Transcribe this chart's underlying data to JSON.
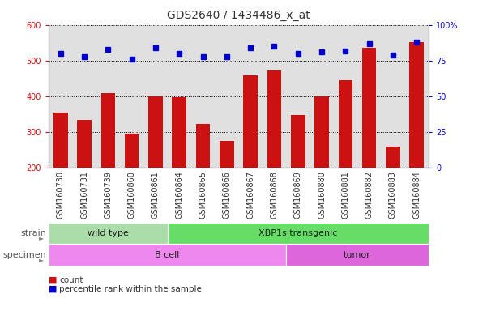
{
  "title": "GDS2640 / 1434486_x_at",
  "samples": [
    "GSM160730",
    "GSM160731",
    "GSM160739",
    "GSM160860",
    "GSM160861",
    "GSM160864",
    "GSM160865",
    "GSM160866",
    "GSM160867",
    "GSM160868",
    "GSM160869",
    "GSM160880",
    "GSM160881",
    "GSM160882",
    "GSM160883",
    "GSM160884"
  ],
  "counts": [
    355,
    335,
    410,
    297,
    400,
    398,
    322,
    275,
    460,
    472,
    347,
    400,
    445,
    535,
    260,
    552
  ],
  "percentiles": [
    80,
    78,
    83,
    76,
    84,
    80,
    78,
    78,
    84,
    85,
    80,
    81,
    82,
    87,
    79,
    88
  ],
  "ylim_left": [
    200,
    600
  ],
  "ylim_right": [
    0,
    100
  ],
  "yticks_left": [
    200,
    300,
    400,
    500,
    600
  ],
  "yticks_right": [
    0,
    25,
    50,
    75,
    100
  ],
  "ytick_labels_right": [
    "0",
    "25",
    "50",
    "75",
    "100%"
  ],
  "bar_color": "#cc1111",
  "dot_color": "#0000cc",
  "strain_groups": [
    {
      "label": "wild type",
      "start": 0,
      "end": 5,
      "color": "#aaddaa"
    },
    {
      "label": "XBP1s transgenic",
      "start": 5,
      "end": 16,
      "color": "#66dd66"
    }
  ],
  "specimen_groups": [
    {
      "label": "B cell",
      "start": 0,
      "end": 10,
      "color": "#ee88ee"
    },
    {
      "label": "tumor",
      "start": 10,
      "end": 16,
      "color": "#dd66dd"
    }
  ],
  "strain_label": "strain",
  "specimen_label": "specimen",
  "legend_count_label": "count",
  "legend_pct_label": "percentile rank within the sample",
  "background_color": "#ffffff",
  "plot_bg_color": "#e0e0e0",
  "xtick_bg_color": "#cccccc",
  "grid_color": "#000000",
  "title_fontsize": 10,
  "tick_fontsize": 7,
  "label_fontsize": 8
}
